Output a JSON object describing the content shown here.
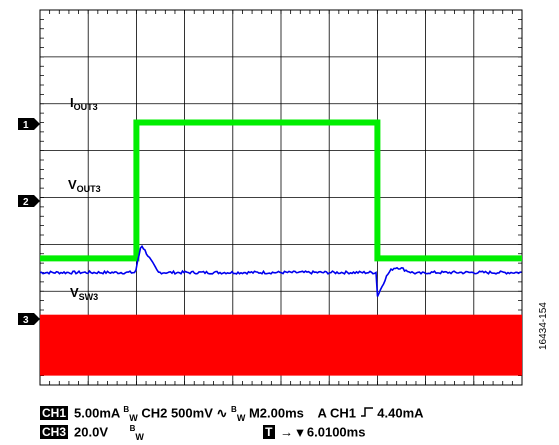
{
  "colors": {
    "ch1": "#00ee00",
    "ch2": "#0000ee",
    "ch3": "#ff0000",
    "grid": "#000000"
  },
  "icons": {
    "rising_edge": "rising-edge-icon",
    "ch2_coupling": "ac-coupling-icon",
    "trigger_arrow": "trigger-arrow-icon"
  },
  "chart_data": {
    "type": "line",
    "x_divisions": 10,
    "y_divisions": 8,
    "x_label": "M2.00ms",
    "series": [
      {
        "name": "CH1",
        "trace_label": "I",
        "trace_sub": "OUT3",
        "marker": "1",
        "scale": "5.00mA",
        "level_div": [
          [
            0,
            -1.3
          ],
          [
            2.0,
            -1.3
          ],
          [
            2.0,
            1.6
          ],
          [
            7.0,
            1.6
          ],
          [
            7.0,
            -1.3
          ],
          [
            10,
            -1.3
          ]
        ]
      },
      {
        "name": "CH2",
        "trace_label": "V",
        "trace_sub": "OUT3",
        "marker": "2",
        "scale": "500mV",
        "baseline_div": -1.6,
        "events": [
          {
            "t_div": 2.1,
            "amp_div": 0.6,
            "shape": "spike"
          },
          {
            "t_div": 7.0,
            "amp_div": -0.5,
            "shape": "ring"
          }
        ]
      },
      {
        "name": "CH3",
        "trace_label": "V",
        "trace_sub": "SW3",
        "marker": "3",
        "scale": "20.0V",
        "band_div": [
          -3.8,
          -2.5
        ]
      }
    ],
    "trigger": {
      "source": "CH1",
      "level": "4.40mA",
      "position": "6.0100ms"
    }
  },
  "info": {
    "row1": {
      "ch1": "CH1",
      "ch1_scale": "5.00mA",
      "bw_b": "B",
      "bw_w": "W",
      "ch2_scale_text": "CH2 500mV",
      "ch2_coupling_glyph": "∿",
      "timebase": "M2.00ms",
      "acq": "A",
      "trig_src": "CH1",
      "trig_level": "4.40mA"
    },
    "row2": {
      "ch3": "CH3",
      "ch3_scale": "20.0V",
      "bw_b": "B",
      "bw_w": "W",
      "t_box": "T",
      "trig_pos": "6.0100ms",
      "arrow_glyph": "→ ▾"
    }
  },
  "figure_id": "16434-154"
}
